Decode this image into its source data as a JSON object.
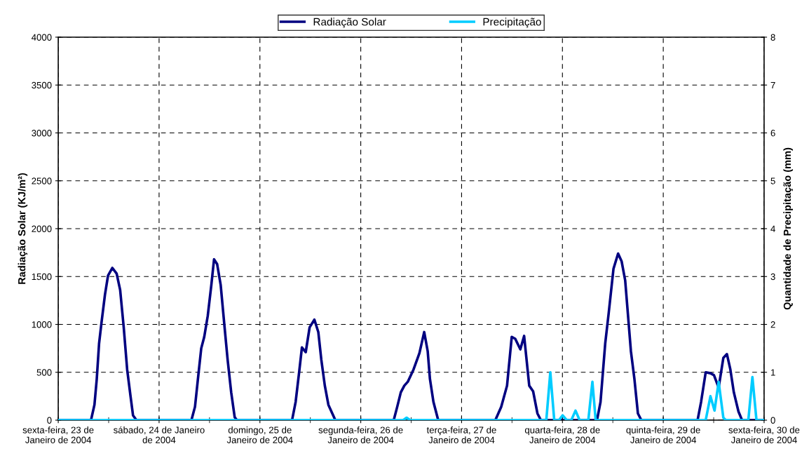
{
  "chart_data": {
    "type": "line",
    "ylabel": "Radiação Solar (KJ/m²)",
    "y2label": "Quantidade de Precipitação (mm)",
    "xlim": [
      "2004-01-23",
      "2004-01-30"
    ],
    "xticks": [
      {
        "value": "2004-01-23",
        "label": "sexta-feira, 23 de\nJaneiro de 2004"
      },
      {
        "value": "2004-01-23T12:00",
        "label": null
      },
      {
        "value": "2004-01-24",
        "label": "sábado, 24 de Janeiro\nde 2004"
      },
      {
        "value": "2004-01-24T12:00",
        "label": null
      },
      {
        "value": "2004-01-25",
        "label": "domingo, 25 de\nJaneiro de 2004"
      },
      {
        "value": "2004-01-25T12:00",
        "label": null
      },
      {
        "value": "2004-01-26",
        "label": "segunda-feira, 26 de\nJaneiro de 2004"
      },
      {
        "value": "2004-01-26T12:00",
        "label": null
      },
      {
        "value": "2004-01-27",
        "label": "terça-feira, 27 de\nJaneiro de 2004"
      },
      {
        "value": "2004-01-27T12:00",
        "label": null
      },
      {
        "value": "2004-01-28",
        "label": "quarta-feira, 28 de\nJaneiro de 2004"
      },
      {
        "value": "2004-01-28T12:00",
        "label": null
      },
      {
        "value": "2004-01-29",
        "label": "quinta-feira, 29 de\nJaneiro de 2004"
      },
      {
        "value": "2004-01-29T12:00",
        "label": null
      },
      {
        "value": "2004-01-30",
        "label": "sexta-feira, 30 de\nJaneiro de 2004"
      }
    ],
    "ylim": [
      0,
      4000
    ],
    "yticks": [
      0,
      500,
      1000,
      1500,
      2000,
      2500,
      3000,
      3500,
      4000
    ],
    "y2lim": [
      0,
      8
    ],
    "y2ticks": [
      0,
      1,
      2,
      3,
      4,
      5,
      6,
      7,
      8
    ],
    "grid": true,
    "legend": "top",
    "line_style": "solid",
    "marker": "none",
    "series": [
      {
        "name": "Radiação Solar",
        "color": "#000080",
        "x": [
          "2004-01-23T00:00",
          "2004-01-23T07:48",
          "2004-01-23T08:37",
          "2004-01-23T09:10",
          "2004-01-23T09:43",
          "2004-01-23T10:18",
          "2004-01-23T11:07",
          "2004-01-23T11:51",
          "2004-01-23T12:53",
          "2004-01-23T13:54",
          "2004-01-23T14:44",
          "2004-01-23T15:35",
          "2004-01-23T16:24",
          "2004-01-23T17:14",
          "2004-01-23T17:48",
          "2004-01-23T18:37",
          "2004-01-24T07:42",
          "2004-01-24T08:33",
          "2004-01-24T09:22",
          "2004-01-24T10:02",
          "2004-01-24T10:45",
          "2004-01-24T11:35",
          "2004-01-24T12:26",
          "2004-01-24T13:05",
          "2004-01-24T13:49",
          "2004-01-24T14:40",
          "2004-01-24T15:29",
          "2004-01-24T16:19",
          "2004-01-24T17:10",
          "2004-01-24T18:00",
          "2004-01-24T18:33",
          "2004-01-25T07:39",
          "2004-01-25T08:30",
          "2004-01-25T09:20",
          "2004-01-25T10:00",
          "2004-01-25T10:54",
          "2004-01-25T11:50",
          "2004-01-25T12:58",
          "2004-01-25T13:54",
          "2004-01-25T14:37",
          "2004-01-25T15:27",
          "2004-01-25T16:18",
          "2004-01-25T17:57",
          "2004-01-26T07:51",
          "2004-01-26T08:41",
          "2004-01-26T09:32",
          "2004-01-26T10:22",
          "2004-01-26T11:11",
          "2004-01-26T12:34",
          "2004-01-26T13:58",
          "2004-01-26T15:06",
          "2004-01-26T15:56",
          "2004-01-26T16:28",
          "2004-01-26T17:18",
          "2004-01-26T18:26",
          "2004-01-27T08:02",
          "2004-01-27T09:26",
          "2004-01-27T10:49",
          "2004-01-27T11:56",
          "2004-01-27T12:46",
          "2004-01-27T13:59",
          "2004-01-27T14:53",
          "2004-01-27T16:06",
          "2004-01-27T17:02",
          "2004-01-27T18:03",
          "2004-01-27T18:53",
          "2004-01-28T08:14",
          "2004-01-28T09:04",
          "2004-01-28T10:11",
          "2004-01-28T11:01",
          "2004-01-28T12:09",
          "2004-01-28T13:15",
          "2004-01-28T14:05",
          "2004-01-28T14:56",
          "2004-01-28T16:18",
          "2004-01-28T17:08",
          "2004-01-28T17:58",
          "2004-01-28T18:47",
          "2004-01-29T08:10",
          "2004-01-29T09:00",
          "2004-01-29T10:06",
          "2004-01-29T11:14",
          "2004-01-29T12:04",
          "2004-01-29T13:11",
          "2004-01-29T14:18",
          "2004-01-29T15:09",
          "2004-01-29T15:58",
          "2004-01-29T16:48",
          "2004-01-29T17:54",
          "2004-01-29T18:45",
          "2004-01-30T00:00"
        ],
        "values": [
          0,
          0,
          160,
          430,
          800,
          1020,
          1310,
          1510,
          1590,
          1530,
          1360,
          970,
          530,
          240,
          50,
          0,
          0,
          140,
          480,
          750,
          870,
          1090,
          1410,
          1680,
          1630,
          1410,
          1020,
          630,
          290,
          30,
          0,
          0,
          190,
          500,
          760,
          710,
          970,
          1050,
          920,
          630,
          360,
          160,
          0,
          0,
          140,
          290,
          360,
          400,
          530,
          700,
          920,
          720,
          430,
          190,
          0,
          0,
          140,
          360,
          870,
          850,
          740,
          880,
          360,
          300,
          70,
          0,
          0,
          190,
          800,
          1120,
          1580,
          1740,
          1660,
          1460,
          720,
          430,
          70,
          0,
          0,
          190,
          500,
          490,
          470,
          340,
          650,
          690,
          530,
          290,
          90,
          0,
          0
        ]
      },
      {
        "name": "Precipitação",
        "color": "#00ccff",
        "axis": "y2",
        "x": [
          "2004-01-23T00:00",
          "2004-01-26T10:05",
          "2004-01-26T10:55",
          "2004-01-26T11:46",
          "2004-01-27T20:10",
          "2004-01-27T21:07",
          "2004-01-27T22:03",
          "2004-01-27T23:10",
          "2004-01-28T00:03",
          "2004-01-28T01:01",
          "2004-01-28T02:07",
          "2004-01-28T03:07",
          "2004-01-28T04:05",
          "2004-01-28T06:10",
          "2004-01-28T07:08",
          "2004-01-28T07:55",
          "2004-01-29T10:06",
          "2004-01-29T11:14",
          "2004-01-29T12:12",
          "2004-01-29T13:11",
          "2004-01-29T14:18",
          "2004-01-29T14:54",
          "2004-01-29T20:15",
          "2004-01-29T21:13",
          "2004-01-29T22:11",
          "2004-01-30T00:00"
        ],
        "values": [
          0,
          0,
          0.05,
          0,
          0,
          1.0,
          0,
          0,
          0.1,
          0,
          0,
          0.2,
          0,
          0,
          0.8,
          0,
          0,
          0.5,
          0.2,
          0.8,
          0.05,
          0,
          0,
          0.9,
          0,
          0
        ]
      }
    ]
  }
}
